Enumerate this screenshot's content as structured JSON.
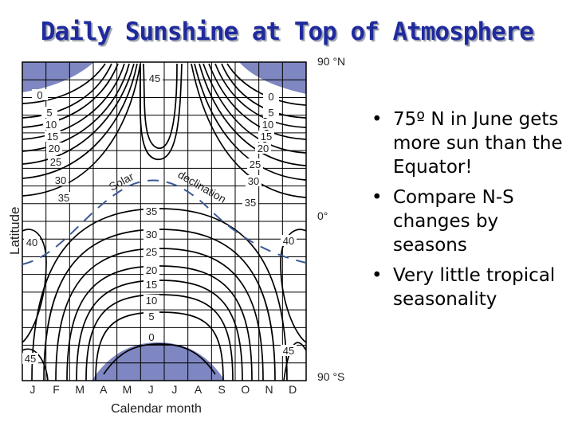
{
  "slide": {
    "title": "Daily Sunshine at Top of Atmosphere",
    "bullets": [
      "75º N in June gets more sun than the Equator!",
      "Compare N-S changes by seasons",
      "Very little tropical seasonality"
    ]
  },
  "diagram": {
    "y_axis_label": "Latitude",
    "x_axis_label": "Calendar month",
    "latitude_labels": {
      "north": "90 °N",
      "equator": "0°",
      "south": "90 °S"
    },
    "months": [
      "J",
      "F",
      "M",
      "A",
      "M",
      "J",
      "J",
      "A",
      "S",
      "O",
      "N",
      "D"
    ],
    "curve_label": [
      "Solar",
      "declination"
    ],
    "contour_labels_top_left": [
      "0",
      "5",
      "10",
      "15",
      "20",
      "25",
      "30",
      "35"
    ],
    "contour_labels_top_right": [
      "0",
      "5",
      "10",
      "15",
      "20",
      "25",
      "30",
      "35"
    ],
    "contour_labels_center": [
      "35",
      "30",
      "25",
      "20",
      "15",
      "10",
      "5",
      "0"
    ],
    "contour_label_top_center": "45",
    "contour_labels_sides": [
      "40",
      "40"
    ],
    "contour_labels_bottom": [
      "45",
      "45"
    ],
    "colors": {
      "polar_night": "#7f87c2",
      "grid": "#000000",
      "declination": "#3a5a95",
      "title": "#1f2a9e"
    }
  }
}
